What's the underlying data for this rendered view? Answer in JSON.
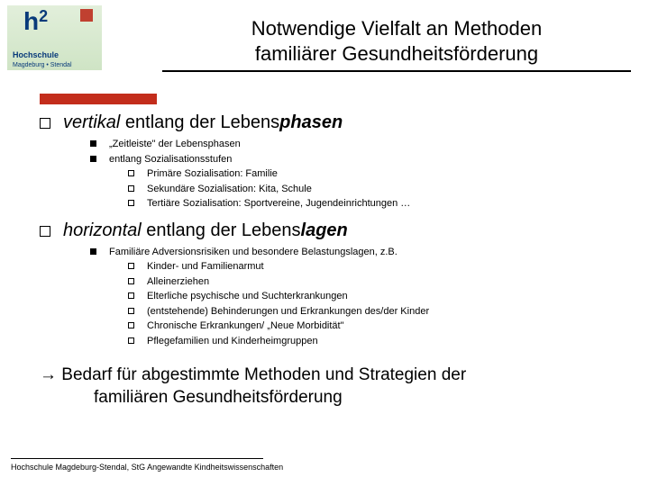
{
  "logo": {
    "mark": "h",
    "sup": "2",
    "name": "Hochschule",
    "sub": "Magdeburg • Stendal"
  },
  "title_line1": "Notwendige Vielfalt an Methoden",
  "title_line2": "familiärer Gesundheitsförderung",
  "section1": {
    "pre": "vertikal",
    "mid": " entlang der Lebens",
    "em": "phasen",
    "b1": "„Zeitleiste\" der Lebensphasen",
    "b2": "entlang Sozialisationsstufen",
    "s1": "Primäre Sozialisation: Familie",
    "s2": "Sekundäre Sozialisation: Kita, Schule",
    "s3": "Tertiäre Sozialisation: Sportvereine, Jugendeinrichtungen …"
  },
  "section2": {
    "pre": "horizontal",
    "mid": " entlang der Lebens",
    "em": "lagen",
    "b1": "Familiäre Adversionsrisiken und besondere Belastungslagen, z.B.",
    "s1": "Kinder- und Familienarmut",
    "s2": "Alleinerziehen",
    "s3": "Elterliche psychische und Suchterkrankungen",
    "s4": "(entstehende) Behinderungen und Erkrankungen des/der Kinder",
    "s5": "Chronische Erkrankungen/ „Neue Morbidität\"",
    "s6": "Pflegefamilien und Kinderheimgruppen"
  },
  "conclusion_l1": "→ Bedarf für abgestimmte Methoden und Strategien der",
  "conclusion_l2": "familiären Gesundheitsförderung",
  "footer": "Hochschule Magdeburg-Stendal, StG Angewandte Kindheitswissenschaften"
}
